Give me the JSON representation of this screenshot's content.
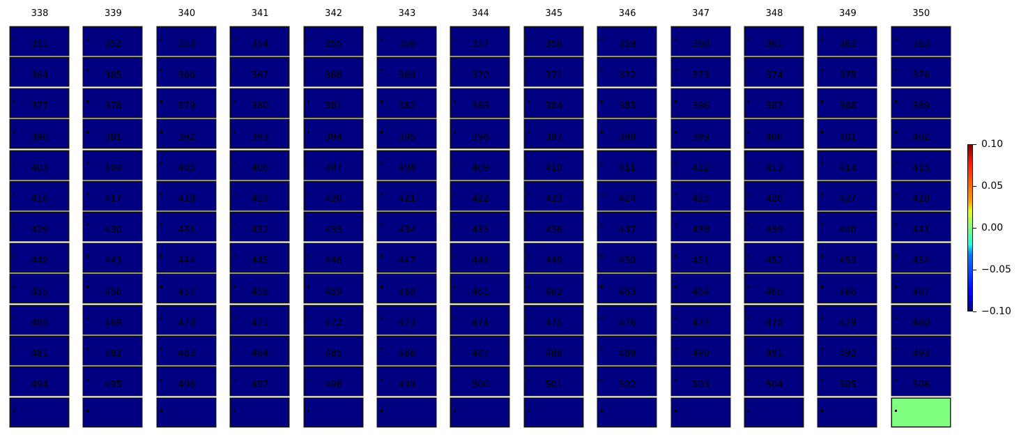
{
  "chart_data": {
    "type": "heatmap",
    "layout": "13 x 13 grid of small heatmap panels",
    "colormap": "jet",
    "clim": [
      -0.1,
      0.1
    ],
    "titles": [
      338,
      339,
      340,
      341,
      342,
      343,
      344,
      345,
      346,
      347,
      348,
      349,
      350,
      351,
      352,
      353,
      354,
      355,
      356,
      357,
      358,
      359,
      360,
      361,
      362,
      363,
      364,
      365,
      366,
      367,
      368,
      369,
      370,
      371,
      372,
      373,
      374,
      375,
      376,
      377,
      378,
      379,
      380,
      381,
      382,
      383,
      384,
      385,
      386,
      387,
      388,
      389,
      390,
      391,
      392,
      393,
      394,
      395,
      396,
      397,
      398,
      399,
      400,
      401,
      402,
      403,
      404,
      405,
      406,
      407,
      408,
      409,
      410,
      411,
      412,
      413,
      414,
      415,
      416,
      417,
      418,
      419,
      420,
      421,
      422,
      423,
      424,
      425,
      426,
      427,
      428,
      429,
      430,
      431,
      432,
      433,
      434,
      435,
      436,
      437,
      438,
      439,
      440,
      441,
      442,
      443,
      444,
      445,
      446,
      447,
      448,
      449,
      450,
      451,
      452,
      453,
      454,
      455,
      456,
      457,
      458,
      459,
      460,
      461,
      462,
      463,
      464,
      465,
      466,
      467,
      468,
      469,
      470,
      471,
      472,
      473,
      474,
      475,
      476,
      477,
      478,
      479,
      480,
      481,
      482,
      483,
      484,
      485,
      486,
      487,
      488,
      489,
      490,
      491,
      492,
      493,
      494,
      495,
      496,
      497,
      498,
      499,
      500,
      501,
      502,
      503,
      504,
      505,
      506
    ],
    "default_value": -0.1,
    "values_override": {
      "506": 0.0
    },
    "colorbar": {
      "ticks": [
        "0.10",
        "0.05",
        "0.00",
        "−0.05",
        "−0.10"
      ],
      "range": [
        -0.1,
        0.1
      ]
    },
    "colors": {
      "min": "#00007f",
      "zero": "#7dff7a"
    }
  }
}
